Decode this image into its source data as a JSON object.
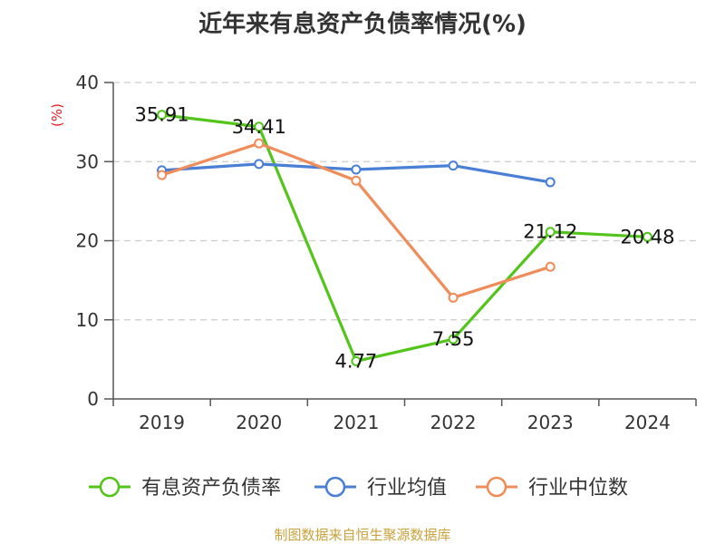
{
  "title": "近年来有息资产负债率情况(%)",
  "source": "制图数据来自恒生聚源数据库",
  "chart_data": {
    "type": "line",
    "title": "近年来有息资产负债率情况(%)",
    "ylabel": "(%)",
    "xlabel": "",
    "categories": [
      "2019",
      "2020",
      "2021",
      "2022",
      "2023",
      "2024"
    ],
    "ylim": [
      0,
      40
    ],
    "yticks": [
      0,
      10,
      20,
      30,
      40
    ],
    "grid": true,
    "legend_position": "bottom",
    "series": [
      {
        "name": "有息资产负债率",
        "color": "#52c41a",
        "values": [
          35.91,
          34.41,
          4.77,
          7.55,
          21.12,
          20.48
        ],
        "labels": [
          "35.91",
          "34.41",
          "4.77",
          "7.55",
          "21.12",
          "20.48"
        ]
      },
      {
        "name": "行业均值",
        "color": "#4a7fd6",
        "values": [
          28.9,
          29.7,
          29.0,
          29.5,
          27.4,
          null
        ]
      },
      {
        "name": "行业中位数",
        "color": "#f08c5a",
        "values": [
          28.3,
          32.3,
          27.6,
          12.8,
          16.7,
          null
        ]
      }
    ]
  }
}
